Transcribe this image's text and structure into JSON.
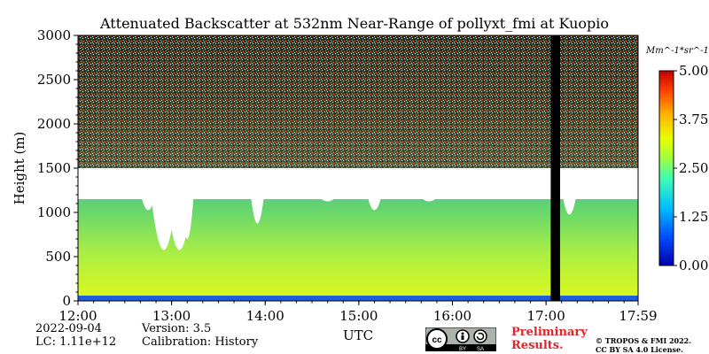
{
  "chart_data": {
    "type": "heatmap",
    "title": "Attenuated Backscatter at 532nm Near-Range of pollyxt_fmi at Kuopio",
    "ylabel": "Height (m)",
    "xlabel": "UTC",
    "ylim": [
      0,
      3000
    ],
    "xlim": [
      "12:00",
      "17:59"
    ],
    "x_ticks": [
      "12:00",
      "13:00",
      "14:00",
      "15:00",
      "16:00",
      "17:00",
      "17:59"
    ],
    "y_ticks": [
      0,
      500,
      1000,
      1500,
      2000,
      2500,
      3000
    ],
    "colorbar": {
      "unit": "Mm^-1*sr^-1",
      "ticks": [
        "0.00",
        "1.25",
        "2.50",
        "3.75",
        "5.00"
      ],
      "range": [
        0,
        5
      ],
      "colormap": "jet"
    },
    "layers": [
      {
        "feature": "near-ground high signal band",
        "height_range": [
          0,
          60
        ],
        "time_range": [
          "12:00",
          "17:59"
        ],
        "value_approx": 0.5
      },
      {
        "feature": "boundary layer aerosol",
        "height_range": [
          60,
          1500
        ],
        "time_range": [
          "12:00",
          "17:59"
        ],
        "value_approx": 2.5
      },
      {
        "feature": "cloud layer (saturated)",
        "height_range": [
          1150,
          1500
        ],
        "time_range": [
          "12:00",
          "17:59"
        ],
        "value_approx": 5.0
      },
      {
        "feature": "free troposphere noise",
        "height_range": [
          1500,
          3000
        ],
        "time_range": [
          "12:00",
          "17:59"
        ],
        "value_approx": 1.0
      },
      {
        "feature": "data gap",
        "height_range": [
          0,
          3000
        ],
        "time_range": [
          "17:03",
          "17:09"
        ]
      }
    ]
  },
  "meta": {
    "date": "2022-09-04",
    "lc": "LC: 1.11e+12",
    "version": "Version: 3.5",
    "calibration": "Calibration: History"
  },
  "notice": {
    "preliminary_line1": "Preliminary",
    "preliminary_line2": "Results.",
    "copyright_line1": "© TROPOS & FMI 2022.",
    "copyright_line2": "CC BY SA 4.0 License.",
    "badge_cc": "cc",
    "badge_by": "BY",
    "badge_sa": "SA"
  },
  "colors": {
    "gap": "#000000",
    "cloud": "#ffffff"
  }
}
